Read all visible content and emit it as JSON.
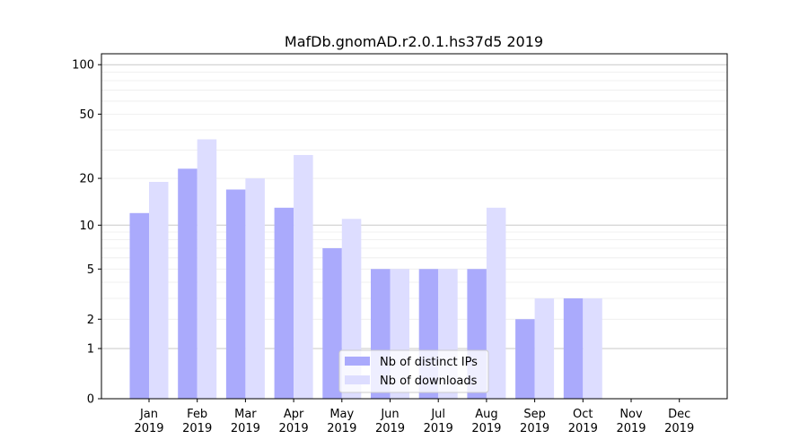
{
  "chart_data": {
    "type": "bar",
    "title": "MafDb.gnomAD.r2.0.1.hs37d5 2019",
    "xlabel": "",
    "ylabel": "",
    "yscale": "log(1+y)",
    "ylim": [
      0,
      110
    ],
    "yticks": [
      0,
      1,
      2,
      5,
      10,
      20,
      50,
      100
    ],
    "yticklabels": [
      "0",
      "1",
      "2",
      "5",
      "10",
      "20",
      "50",
      "100"
    ],
    "categories": [
      "Jan",
      "Feb",
      "Mar",
      "Apr",
      "May",
      "Jun",
      "Jul",
      "Aug",
      "Sep",
      "Oct",
      "Nov",
      "Dec"
    ],
    "category_year": "2019",
    "series": [
      {
        "name": "Nb of distinct IPs",
        "color": "#aaaafc",
        "values": [
          12,
          23,
          17,
          13,
          7,
          5,
          5,
          5,
          2,
          3,
          0,
          0
        ]
      },
      {
        "name": "Nb of downloads",
        "color": "#ddddff",
        "values": [
          19,
          35,
          20,
          28,
          11,
          5,
          5,
          13,
          3,
          3,
          0,
          0
        ]
      }
    ],
    "legend_position": "lower-center",
    "grid": true
  }
}
